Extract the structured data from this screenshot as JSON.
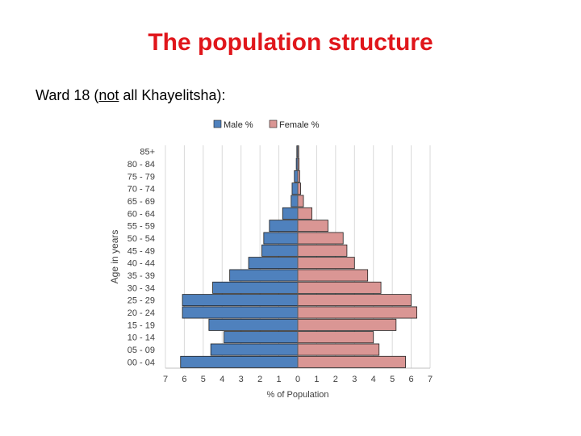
{
  "slide": {
    "title": "The population structure",
    "subtitle_prefix": "Ward 18 (",
    "subtitle_underlined": "not",
    "subtitle_suffix": " all Khayelitsha):"
  },
  "chart_data": {
    "type": "bar",
    "orientation": "horizontal-population-pyramid",
    "categories": [
      "85+",
      "80 - 84",
      "75 - 79",
      "70 - 74",
      "65 - 69",
      "60 - 64",
      "55 - 59",
      "50 - 54",
      "45 - 49",
      "40 - 44",
      "35 - 39",
      "30 - 34",
      "25 - 29",
      "20 - 24",
      "15 - 19",
      "10 - 14",
      "05 - 09",
      "00 - 04"
    ],
    "series": [
      {
        "name": "Male %",
        "color": "#4f81bd",
        "values": [
          0.05,
          0.08,
          0.18,
          0.3,
          0.35,
          0.8,
          1.5,
          1.8,
          1.9,
          2.6,
          3.6,
          4.5,
          6.1,
          6.1,
          4.7,
          3.9,
          4.6,
          6.2
        ]
      },
      {
        "name": "Female %",
        "color": "#da9694",
        "values": [
          0.05,
          0.07,
          0.1,
          0.15,
          0.3,
          0.75,
          1.6,
          2.4,
          2.6,
          3.0,
          3.7,
          4.4,
          6.0,
          6.3,
          5.2,
          4.0,
          4.3,
          5.7
        ]
      }
    ],
    "x_tick_labels": [
      "7",
      "6",
      "5",
      "4",
      "3",
      "2",
      "1",
      "0",
      "1",
      "2",
      "3",
      "4",
      "5",
      "6",
      "7"
    ],
    "xlim": [
      -7,
      7
    ],
    "xlabel": "% of Population",
    "ylabel": "Age in years",
    "grid": true,
    "legend": "top"
  }
}
